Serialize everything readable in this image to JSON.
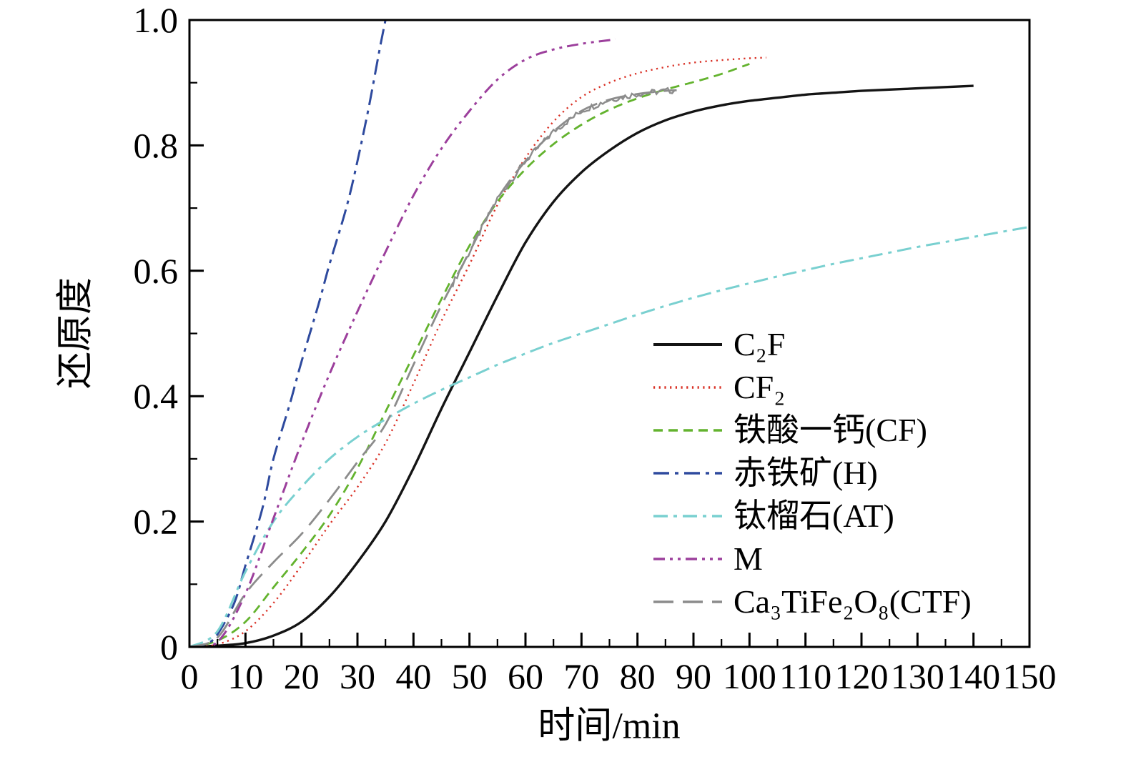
{
  "chart_data": {
    "type": "line",
    "title": "",
    "xlabel": "时间/min",
    "ylabel": "还原度",
    "xlim": [
      0,
      150
    ],
    "ylim": [
      0,
      1.0
    ],
    "grid": false,
    "legend_position": "inside-right-center",
    "x_ticks": {
      "values": [
        0,
        10,
        20,
        30,
        40,
        50,
        60,
        70,
        80,
        90,
        100,
        110,
        120,
        130,
        140,
        150
      ],
      "labels": [
        "0",
        "10",
        "20",
        "30",
        "40",
        "50",
        "60",
        "70",
        "80",
        "90",
        "100",
        "110",
        "120",
        "130",
        "140",
        "150"
      ],
      "minor_step": 5
    },
    "y_ticks": {
      "values": [
        0,
        0.2,
        0.4,
        0.6,
        0.8,
        1.0
      ],
      "labels": [
        "0",
        "0.2",
        "0.4",
        "0.6",
        "0.8",
        "1.0"
      ],
      "minor_step": 0.1
    },
    "series": [
      {
        "name": "C2F",
        "label": "C₂F",
        "color": "#141414",
        "dash": [],
        "width": 3.4,
        "x": [
          0,
          5,
          10,
          15,
          20,
          25,
          30,
          35,
          40,
          45,
          50,
          55,
          60,
          65,
          70,
          75,
          80,
          85,
          90,
          95,
          100,
          105,
          110,
          115,
          120,
          125,
          130,
          135,
          140
        ],
        "y": [
          0,
          0.002,
          0.006,
          0.018,
          0.04,
          0.08,
          0.135,
          0.2,
          0.285,
          0.38,
          0.47,
          0.56,
          0.645,
          0.71,
          0.757,
          0.792,
          0.82,
          0.84,
          0.854,
          0.864,
          0.871,
          0.876,
          0.881,
          0.884,
          0.887,
          0.889,
          0.891,
          0.893,
          0.895
        ]
      },
      {
        "name": "CF2",
        "label": "CF₂",
        "color": "#d93025",
        "dash": [
          2.2,
          5.5
        ],
        "width": 2.4,
        "x": [
          0,
          5,
          10,
          15,
          20,
          25,
          30,
          35,
          40,
          45,
          50,
          55,
          60,
          65,
          70,
          75,
          80,
          85,
          90,
          95,
          100,
          103
        ],
        "y": [
          0,
          0.004,
          0.025,
          0.07,
          0.13,
          0.195,
          0.255,
          0.325,
          0.42,
          0.52,
          0.61,
          0.705,
          0.78,
          0.838,
          0.877,
          0.9,
          0.915,
          0.925,
          0.932,
          0.936,
          0.939,
          0.94
        ]
      },
      {
        "name": "CF",
        "label": "铁酸一钙(CF)",
        "color": "#63b32e",
        "dash": [
          13,
          8
        ],
        "width": 2.8,
        "x": [
          0,
          5,
          10,
          15,
          20,
          25,
          30,
          35,
          40,
          45,
          50,
          55,
          60,
          65,
          70,
          75,
          80,
          85,
          90,
          95,
          100
        ],
        "y": [
          0,
          0.01,
          0.04,
          0.095,
          0.15,
          0.21,
          0.285,
          0.375,
          0.465,
          0.555,
          0.64,
          0.71,
          0.762,
          0.802,
          0.833,
          0.857,
          0.875,
          0.889,
          0.901,
          0.914,
          0.93
        ]
      },
      {
        "name": "H",
        "label": "赤铁矿(H)",
        "color": "#2e4a9e",
        "dash": [
          22,
          8,
          5,
          8
        ],
        "width": 3,
        "x": [
          0,
          3,
          5,
          8,
          10,
          13,
          15,
          18,
          20,
          23,
          25,
          28,
          30,
          32,
          34,
          35
        ],
        "y": [
          0,
          0.005,
          0.02,
          0.07,
          0.13,
          0.22,
          0.3,
          0.39,
          0.455,
          0.545,
          0.61,
          0.7,
          0.775,
          0.86,
          0.955,
          1.0
        ]
      },
      {
        "name": "AT",
        "label": "钛榴石(AT)",
        "color": "#79d0d0",
        "dash": [
          20,
          8,
          5,
          8
        ],
        "width": 3,
        "x": [
          0,
          5,
          10,
          15,
          20,
          25,
          30,
          35,
          40,
          45,
          50,
          55,
          60,
          65,
          70,
          75,
          80,
          85,
          90,
          95,
          100,
          105,
          110,
          115,
          120,
          125,
          130,
          135,
          140,
          145,
          150
        ],
        "y": [
          0,
          0.025,
          0.12,
          0.2,
          0.255,
          0.3,
          0.335,
          0.363,
          0.388,
          0.41,
          0.43,
          0.45,
          0.468,
          0.485,
          0.5,
          0.515,
          0.53,
          0.544,
          0.557,
          0.569,
          0.58,
          0.591,
          0.601,
          0.611,
          0.62,
          0.629,
          0.638,
          0.646,
          0.654,
          0.662,
          0.67
        ]
      },
      {
        "name": "M",
        "label": "M",
        "color": "#9c3f9c",
        "dash": [
          16,
          7,
          4,
          7,
          4,
          7
        ],
        "width": 3,
        "x": [
          0,
          5,
          10,
          15,
          20,
          25,
          30,
          35,
          40,
          45,
          50,
          55,
          60,
          65,
          70,
          75,
          76
        ],
        "y": [
          0,
          0.008,
          0.085,
          0.205,
          0.325,
          0.435,
          0.535,
          0.63,
          0.72,
          0.795,
          0.855,
          0.905,
          0.937,
          0.953,
          0.962,
          0.968,
          0.97
        ]
      },
      {
        "name": "CTF",
        "label": "Ca₃TiFe₂O₈(CTF)",
        "color": "#8c8c8c",
        "dash": [
          28,
          13
        ],
        "width": 2.8,
        "noise": {
          "from": 47,
          "to": 87,
          "amplitude": 0.005
        },
        "x": [
          0,
          5,
          10,
          15,
          20,
          25,
          30,
          35,
          40,
          45,
          50,
          55,
          60,
          65,
          70,
          75,
          80,
          85,
          87
        ],
        "y": [
          0,
          0.015,
          0.085,
          0.135,
          0.18,
          0.235,
          0.295,
          0.355,
          0.45,
          0.545,
          0.63,
          0.715,
          0.775,
          0.822,
          0.855,
          0.873,
          0.882,
          0.887,
          0.888
        ]
      }
    ]
  }
}
